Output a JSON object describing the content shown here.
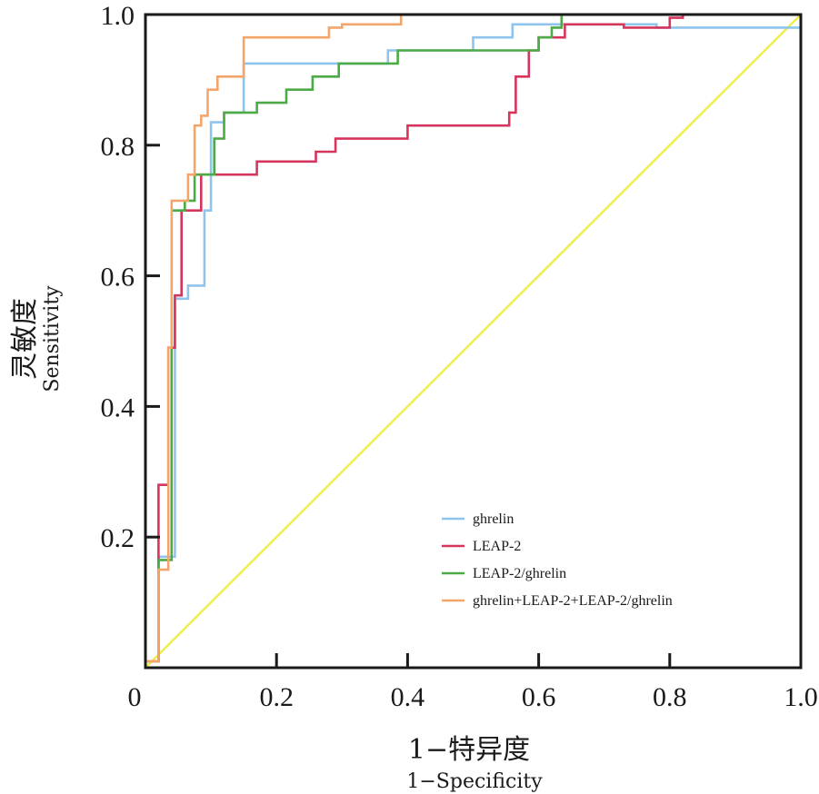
{
  "chart_data": {
    "type": "line",
    "xlabel": "1−特异度",
    "xlabel_en": "1−Specificity",
    "ylabel": "灵敏度",
    "ylabel_en": "Sensitivity",
    "xlim": [
      0,
      1.0
    ],
    "ylim": [
      0,
      1.0
    ],
    "xticks": [
      0,
      0.2,
      0.4,
      0.6,
      0.8,
      1.0
    ],
    "xtick_labels": [
      "0",
      "0.2",
      "0.4",
      "0.6",
      "0.8",
      "1.0"
    ],
    "yticks": [
      0.2,
      0.4,
      0.6,
      0.8,
      1.0
    ],
    "ytick_labels": [
      "0.2",
      "0.4",
      "0.6",
      "0.8",
      "1.0"
    ],
    "grid": false,
    "legend_position": "bottom-right",
    "reference_line": {
      "color": "#f0ee4a",
      "x": [
        0,
        1.0
      ],
      "y": [
        0,
        1.0
      ]
    },
    "series": [
      {
        "name": "ghrelin",
        "color": "#8fc4ec",
        "x": [
          0,
          0.02,
          0.02,
          0.045,
          0.045,
          0.065,
          0.065,
          0.09,
          0.09,
          0.1,
          0.1,
          0.12,
          0.12,
          0.15,
          0.15,
          0.19,
          0.19,
          0.37,
          0.37,
          0.39,
          0.39,
          0.5,
          0.5,
          0.56,
          0.56,
          0.62,
          0.62,
          0.78,
          0.78,
          1.0,
          1.0
        ],
        "y": [
          0.01,
          0.01,
          0.17,
          0.17,
          0.565,
          0.565,
          0.585,
          0.585,
          0.7,
          0.7,
          0.835,
          0.835,
          0.85,
          0.85,
          0.925,
          0.925,
          0.925,
          0.925,
          0.945,
          0.945,
          0.945,
          0.945,
          0.965,
          0.965,
          0.985,
          0.985,
          0.985,
          0.985,
          0.98,
          0.98,
          1.0
        ]
      },
      {
        "name": "LEAP-2",
        "color": "#d6355e",
        "x": [
          0,
          0.02,
          0.02,
          0.035,
          0.035,
          0.04,
          0.04,
          0.045,
          0.045,
          0.055,
          0.055,
          0.065,
          0.065,
          0.085,
          0.085,
          0.13,
          0.13,
          0.17,
          0.17,
          0.26,
          0.26,
          0.29,
          0.29,
          0.31,
          0.31,
          0.4,
          0.4,
          0.45,
          0.45,
          0.5,
          0.5,
          0.555,
          0.555,
          0.565,
          0.565,
          0.585,
          0.585,
          0.6,
          0.6,
          0.64,
          0.64,
          0.73,
          0.73,
          0.8,
          0.8,
          0.82,
          0.82,
          1.0
        ],
        "y": [
          0.01,
          0.01,
          0.28,
          0.28,
          0.49,
          0.49,
          0.49,
          0.49,
          0.57,
          0.57,
          0.7,
          0.7,
          0.7,
          0.7,
          0.755,
          0.755,
          0.755,
          0.755,
          0.775,
          0.775,
          0.79,
          0.79,
          0.81,
          0.81,
          0.81,
          0.81,
          0.83,
          0.83,
          0.83,
          0.83,
          0.83,
          0.83,
          0.85,
          0.85,
          0.905,
          0.905,
          0.945,
          0.945,
          0.965,
          0.965,
          0.985,
          0.985,
          0.98,
          0.98,
          0.995,
          0.995,
          1.0,
          1.0
        ]
      },
      {
        "name": "LEAP-2/ghrelin",
        "color": "#4caa47",
        "x": [
          0,
          0.02,
          0.02,
          0.04,
          0.04,
          0.06,
          0.06,
          0.075,
          0.075,
          0.105,
          0.105,
          0.12,
          0.12,
          0.17,
          0.17,
          0.215,
          0.215,
          0.255,
          0.255,
          0.295,
          0.295,
          0.315,
          0.315,
          0.385,
          0.385,
          0.43,
          0.43,
          0.6,
          0.6,
          0.62,
          0.62,
          0.635,
          0.635,
          1.0
        ],
        "y": [
          0.01,
          0.01,
          0.165,
          0.165,
          0.7,
          0.7,
          0.715,
          0.715,
          0.755,
          0.755,
          0.81,
          0.81,
          0.85,
          0.85,
          0.865,
          0.865,
          0.885,
          0.885,
          0.905,
          0.905,
          0.925,
          0.925,
          0.925,
          0.925,
          0.945,
          0.945,
          0.945,
          0.945,
          0.965,
          0.965,
          0.98,
          0.98,
          1.0,
          1.0
        ]
      },
      {
        "name": "ghrelin+LEAP-2+LEAP-2/ghrelin",
        "color": "#f4a56a",
        "x": [
          0,
          0.02,
          0.02,
          0.035,
          0.035,
          0.04,
          0.04,
          0.065,
          0.065,
          0.075,
          0.075,
          0.085,
          0.085,
          0.095,
          0.095,
          0.11,
          0.11,
          0.13,
          0.13,
          0.15,
          0.15,
          0.2,
          0.2,
          0.28,
          0.28,
          0.3,
          0.3,
          0.39,
          0.39,
          1.0
        ],
        "y": [
          0.01,
          0.01,
          0.15,
          0.15,
          0.49,
          0.49,
          0.715,
          0.715,
          0.755,
          0.755,
          0.83,
          0.83,
          0.845,
          0.845,
          0.885,
          0.885,
          0.905,
          0.905,
          0.905,
          0.905,
          0.965,
          0.965,
          0.965,
          0.965,
          0.98,
          0.98,
          0.985,
          0.985,
          1.0,
          1.0
        ]
      }
    ]
  }
}
